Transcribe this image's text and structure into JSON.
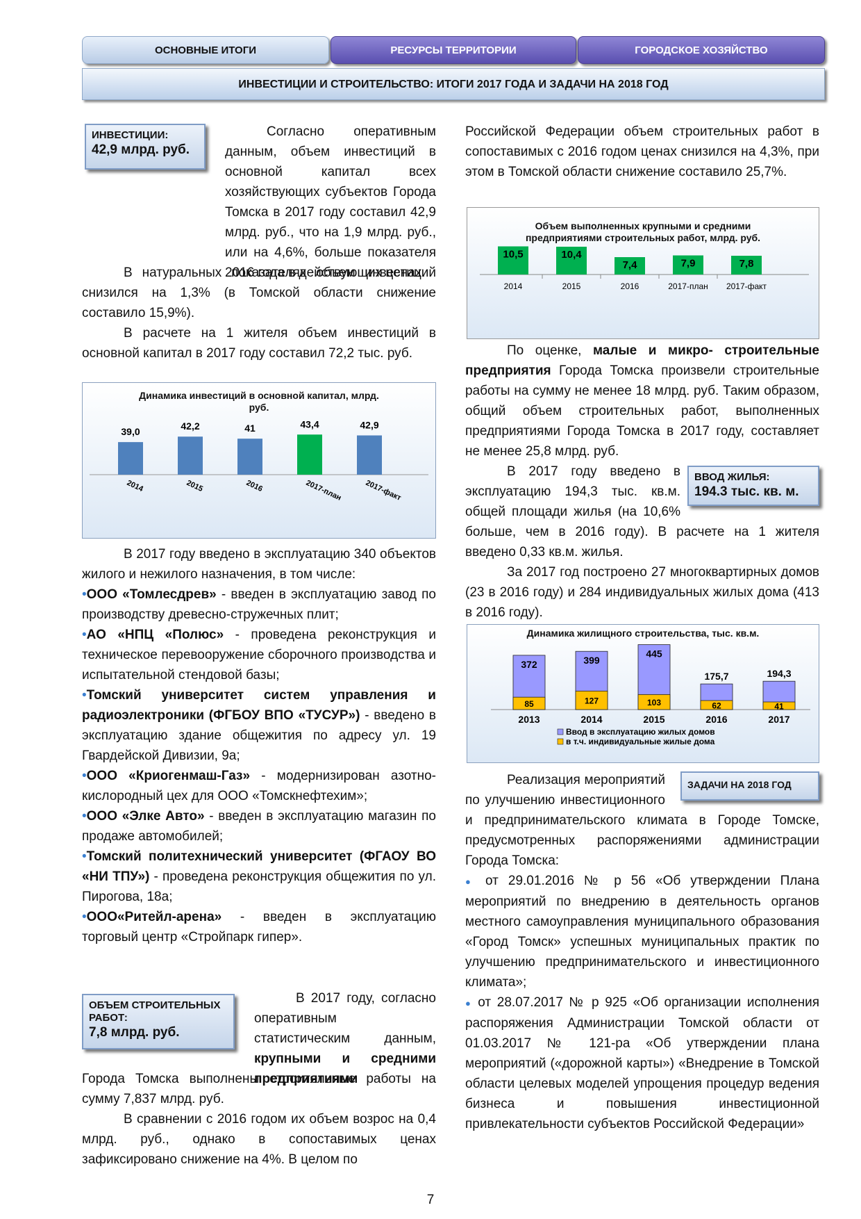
{
  "tabs": [
    "ОСНОВНЫЕ ИТОГИ",
    "РЕСУРСЫ ТЕРРИТОРИИ",
    "ГОРОДСКОЕ ХОЗЯЙСТВО"
  ],
  "banner": "ИНВЕСТИЦИИ И СТРОИТЕЛЬСТВО: ИТОГИ 2017 ГОДА И ЗАДАЧИ НА 2018 ГОД",
  "box_invest": {
    "label": "ИНВЕСТИЦИИ:",
    "value": "42,9 млрд. руб."
  },
  "box_work": {
    "label": "ОБЪЕМ СТРОИТЕЛЬНЫХ РАБОТ:",
    "value": "7,8 млрд. руб."
  },
  "box_housing": {
    "label": "ВВОД ЖИЛЬЯ:",
    "value": "194.3 тыс. кв. м."
  },
  "box_tasks": {
    "label": "ЗАДАЧИ НА 2018 ГОД"
  },
  "left": {
    "p1": "Согласно оперативным данным, объем инвестиций в основной капитал всех хозяйствующих субъектов Города Томска в 2017 году составил 42,9 млрд. руб., что на 1,9 млрд. руб., или на 4,6%, больше показателя 2016 года в действующих ценах.",
    "p2": "В натуральных показателях объем инвестиций снизился на 1,3% (в Томской области снижение составило 15,9%).",
    "p3": "В расчете на 1 жителя объем инвестиций в основной капитал в 2017 году составил 72,2 тыс. руб.",
    "p4": "В 2017 году введено в эксплуатацию 340 объектов жилого и нежилого назначения, в том числе:",
    "b1_name": "ООО «Томлесдрев»",
    "b1_text": " - введен в эксплуатацию завод по производству древесно-стружечных плит;",
    "b2_name": "АО «НПЦ «Полюс»",
    "b2_text": " - проведена реконструкция и техническое перевооружение сборочного производства и испытательной стендовой базы;",
    "b3_name": "Томский университет систем управления и радиоэлектроники (ФГБОУ ВПО «ТУСУР»)",
    "b3_text": " - введено в эксплуатацию здание общежития по адресу ул. 19 Гвардейской Дивизии, 9а;",
    "b4_name": "ООО «Криогенмаш-Газ»",
    "b4_text": " - модернизирован азотно-кислородный цех для ООО «Томскнефтехим»;",
    "b5_name": "ООО «Элке Авто»",
    "b5_text": " - введен в эксплуатацию магазин по продаже автомобилей;",
    "b6_name": "Томский политехнический университет (ФГАОУ ВО «НИ ТПУ»)",
    "b6_text": " - проведена реконструкция общежития по ул. Пирогова, 18а;",
    "b7_name": "ООО«Ритейл-арена»",
    "b7_text": " - введен в эксплуатацию торговый центр «Стройпарк гипер».",
    "p5a": "В 2017 году, согласно оперативным статистическим данным, ",
    "p5b": "крупными и средними предприятиями",
    "p5c": " Города Томска выполнены строительные работы на сумму 7,837 млрд. руб.",
    "p6": "В сравнении с 2016 годом их объем возрос на 0,4 млрд. руб., однако в сопоставимых ценах зафиксировано снижение на 4%. В целом по"
  },
  "right": {
    "p1": "Российской Федерации объем строительных работ в сопоставимых с 2016 годом ценах снизился на 4,3%, при этом в Томской области снижение составило 25,7%.",
    "p2a": "По оценке, ",
    "p2b": "малые и микро- строительные предприятия",
    "p2c": " Города Томска произвели строительные работы на сумму не менее 18 млрд. руб. Таким образом, общий объем строительных работ, выполненных предприятиями Города Томска в 2017 году, составляет не менее 25,8 млрд. руб.",
    "p3": "В 2017 году введено в эксплуатацию 194,3 тыс. кв.м. общей площади жилья (на 10,6% больше, чем в 2016 году). В расчете на 1 жителя введено 0,33 кв.м. жилья.",
    "p4": "За 2017 год построено 27 многоквартирных домов (23 в 2016 году) и 284 индивидуальных жилых дома (413 в 2016 году).",
    "p5": "Реализация мероприятий по улучшению инвестиционного и предпринимательского климата в Городе Томске, предусмотренных распоряжениями администрации Города Томска:",
    "d1": "от 29.01.2016 № р 56 «Об утверждении Плана мероприятий по внедрению в деятельность органов местного самоуправления муниципального образования «Город Томск» успешных муниципальных практик по улучшению предпринимательского и инвестиционного климата»;",
    "d2": "от 28.07.2017 № р 925 «Об организации исполнения распоряжения Администрации Томской области от 01.03.2017 № 121-ра «Об утверждении плана мероприятий («дорожной карты») «Внедрение в Томской области целевых моделей упрощения процедур ведения бизнеса и повышения инвестиционной привлекательности субъектов Российской Федерации»"
  },
  "page_number": "7",
  "colors": {
    "bar_blue": "#4f81bd",
    "bar_green": "#00b050",
    "bar_violet": "#9999ff",
    "bar_yellow": "#ffc000"
  },
  "chart_data": [
    {
      "type": "bar",
      "title": "Динамика инвестиций в основной капитал, млрд. руб.",
      "categories": [
        "2014",
        "2015",
        "2016",
        "2017-план",
        "2017-факт"
      ],
      "values": [
        39.0,
        42.2,
        41,
        43.4,
        42.9
      ],
      "labels": [
        "39,0",
        "42,2",
        "41",
        "43,4",
        "42,9"
      ],
      "ylim": [
        0,
        50
      ]
    },
    {
      "type": "bar",
      "title": "Объем выполненных крупными и средними предприятиями строительных работ, млрд. руб.",
      "categories": [
        "2014",
        "2015",
        "2016",
        "2017-план",
        "2017-факт"
      ],
      "values": [
        10.5,
        10.4,
        7.4,
        7.9,
        7.8
      ],
      "labels": [
        "10,5",
        "10,4",
        "7,4",
        "7,9",
        "7,8"
      ],
      "ylim": [
        0,
        12
      ]
    },
    {
      "type": "bar",
      "title": "Динамика жилищного строительства, тыс. кв.м.",
      "categories": [
        "2013",
        "2014",
        "2015",
        "2016",
        "2017"
      ],
      "series": [
        {
          "name": "Ввод в эксплуатацию жилых домов",
          "values": [
            372,
            399,
            445,
            175.7,
            194.3
          ],
          "labels": [
            "372",
            "399",
            "445",
            "175,7",
            "194,3"
          ]
        },
        {
          "name": "в т.ч. индивидуальные жилые дома",
          "values": [
            85,
            127,
            103,
            62,
            41
          ],
          "labels": [
            "85",
            "127",
            "103",
            "62",
            "41"
          ]
        }
      ],
      "ylim": [
        0,
        450
      ],
      "legend": "bottom"
    }
  ]
}
